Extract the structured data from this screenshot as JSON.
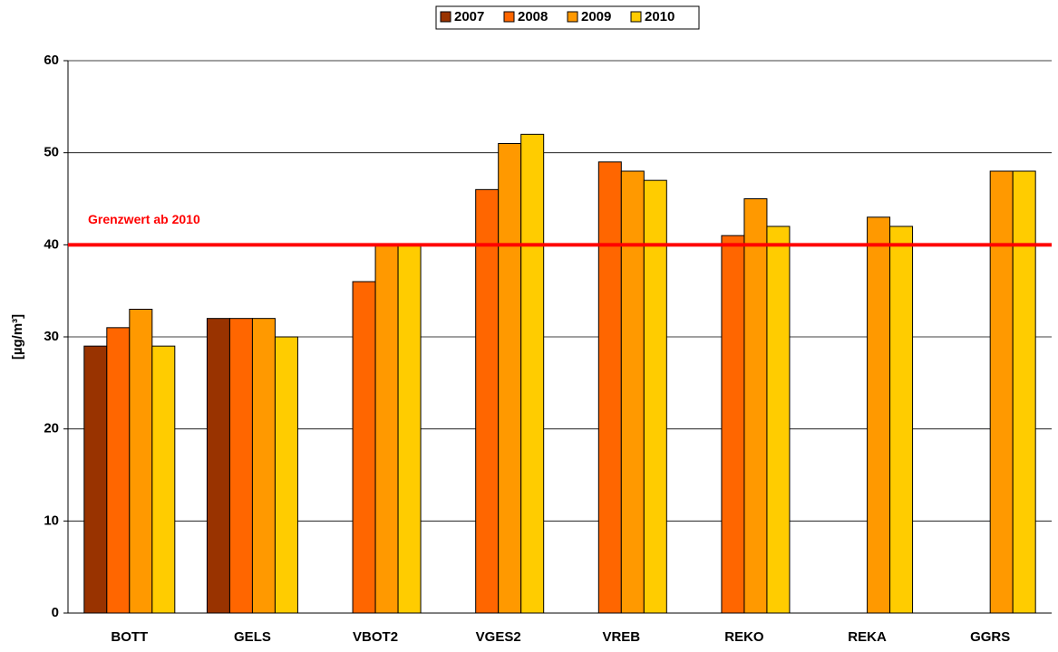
{
  "chart_data": {
    "type": "bar",
    "categories": [
      "BOTT",
      "GELS",
      "VBOT2",
      "VGES2",
      "VREB",
      "REKO",
      "REKA",
      "GGRS"
    ],
    "series": [
      {
        "name": "2007",
        "color": "#993300",
        "values": [
          29,
          32,
          null,
          null,
          null,
          null,
          null,
          null
        ]
      },
      {
        "name": "2008",
        "color": "#ff6600",
        "values": [
          31,
          32,
          36,
          46,
          49,
          41,
          null,
          null
        ]
      },
      {
        "name": "2009",
        "color": "#ff9900",
        "values": [
          33,
          32,
          40,
          51,
          48,
          45,
          43,
          48
        ]
      },
      {
        "name": "2010",
        "color": "#ffcc00",
        "values": [
          29,
          30,
          40,
          52,
          47,
          42,
          42,
          48
        ]
      }
    ],
    "y_label": "[µg/m³]",
    "ylim": [
      0,
      60
    ],
    "yticks": [
      0,
      10,
      20,
      30,
      40,
      50,
      60
    ],
    "grid": true,
    "legend": "top",
    "reference_line": {
      "value": 40,
      "label": "Grenzwert ab 2010",
      "color": "#ff0000"
    }
  }
}
